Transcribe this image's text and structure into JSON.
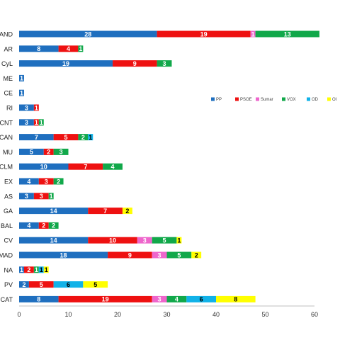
{
  "chart_data": {
    "type": "bar",
    "orientation": "horizontal",
    "stacked": true,
    "categories": [
      "AND",
      "AR",
      "CyL",
      "ME",
      "CE",
      "RI",
      "CNT",
      "CAN",
      "MU",
      "CLM",
      "EX",
      "AS",
      "GA",
      "BAL",
      "CV",
      "MAD",
      "NA",
      "PV",
      "CAT"
    ],
    "series": [
      {
        "name": "PP",
        "color": "#1f6fbf",
        "label_color": "#ffffff",
        "values": [
          28,
          8,
          19,
          1,
          1,
          3,
          3,
          7,
          5,
          10,
          4,
          3,
          14,
          4,
          14,
          18,
          1,
          2,
          8
        ]
      },
      {
        "name": "PSOE",
        "color": "#ee1111",
        "label_color": "#ffffff",
        "values": [
          19,
          4,
          9,
          0,
          0,
          1,
          1,
          5,
          2,
          7,
          3,
          3,
          7,
          2,
          10,
          9,
          2,
          5,
          19
        ]
      },
      {
        "name": "Sumar",
        "color": "#ee66cc",
        "label_color": "#ffffff",
        "values": [
          1,
          0,
          0,
          0,
          0,
          0,
          0,
          0,
          0,
          0,
          0,
          0,
          0,
          0,
          3,
          3,
          0,
          0,
          3
        ]
      },
      {
        "name": "VOX",
        "color": "#11a84a",
        "label_color": "#ffffff",
        "values": [
          13,
          1,
          3,
          0,
          0,
          0,
          1,
          2,
          3,
          4,
          2,
          1,
          0,
          2,
          5,
          5,
          1,
          0,
          4
        ]
      },
      {
        "name": "OD",
        "color": "#11b2e8",
        "label_color": "#000000",
        "values": [
          0,
          0,
          0,
          0,
          0,
          0,
          0,
          1,
          0,
          0,
          0,
          0,
          0,
          0,
          0,
          0,
          1,
          6,
          6
        ]
      },
      {
        "name": "OI",
        "color": "#ffff00",
        "label_color": "#000000",
        "values": [
          0,
          0,
          0,
          0,
          0,
          0,
          0,
          0,
          0,
          0,
          0,
          0,
          2,
          0,
          1,
          2,
          1,
          5,
          8
        ]
      }
    ],
    "xlim": [
      0,
      60
    ],
    "xticks": [
      "0",
      "10",
      "20",
      "30",
      "40",
      "50",
      "60"
    ],
    "xtick_values": [
      0,
      10,
      20,
      30,
      40,
      50,
      60
    ],
    "grid": false,
    "legend_position": "right",
    "title": "",
    "xlabel": "",
    "ylabel": ""
  }
}
